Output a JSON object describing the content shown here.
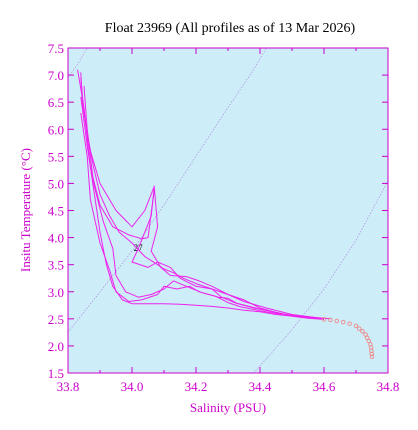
{
  "chart_data": {
    "type": "line",
    "title": "Float 23969  (All profiles as of 13 Mar 2026)",
    "xlabel": "Salinity (PSU)",
    "ylabel": "Insitu Temperature (°C)",
    "xlim": [
      33.8,
      34.8
    ],
    "ylim": [
      1.5,
      7.5
    ],
    "x_ticks": [
      "33.8",
      "34.0",
      "34.2",
      "34.4",
      "34.6",
      "34.8"
    ],
    "y_ticks": [
      "1.5",
      "2.0",
      "2.5",
      "3.0",
      "3.5",
      "4.0",
      "4.5",
      "5.0",
      "5.5",
      "6.0",
      "6.5",
      "7.0",
      "7.5"
    ],
    "grid": false,
    "colors": {
      "plot_background": "#cdeef8",
      "profiles": "#ee22ee",
      "deep_points": "#ee8888",
      "axes": "#cc00cc",
      "density_contours": "#b088e0"
    },
    "density_contours": [
      {
        "label": "",
        "points": [
          [
            33.8,
            6.95
          ],
          [
            33.83,
            7.2
          ],
          [
            33.86,
            7.5
          ]
        ]
      },
      {
        "label": "27",
        "points": [
          [
            33.8,
            2.25
          ],
          [
            33.9,
            3.0
          ],
          [
            34.0,
            3.75
          ],
          [
            34.1,
            4.6
          ],
          [
            34.2,
            5.5
          ],
          [
            34.3,
            6.4
          ],
          [
            34.38,
            7.1
          ],
          [
            34.42,
            7.5
          ]
        ]
      },
      {
        "label": "",
        "points": [
          [
            34.38,
            1.5
          ],
          [
            34.5,
            2.3
          ],
          [
            34.6,
            3.05
          ],
          [
            34.7,
            3.95
          ],
          [
            34.8,
            5.05
          ]
        ]
      }
    ],
    "contour_label_position": [
      34.005,
      3.75
    ],
    "series": [
      {
        "values": [
          [
            33.84,
            7.05
          ],
          [
            33.845,
            6.5
          ],
          [
            33.86,
            5.9
          ],
          [
            33.88,
            5.3
          ],
          [
            33.9,
            4.8
          ],
          [
            33.93,
            4.4
          ],
          [
            33.96,
            4.1
          ],
          [
            34.0,
            3.9
          ],
          [
            34.04,
            3.65
          ],
          [
            34.08,
            3.5
          ],
          [
            34.1,
            3.42
          ],
          [
            34.13,
            3.35
          ],
          [
            34.16,
            3.25
          ],
          [
            34.2,
            3.15
          ],
          [
            34.25,
            3.05
          ],
          [
            34.3,
            2.95
          ],
          [
            34.35,
            2.85
          ],
          [
            34.4,
            2.7
          ],
          [
            34.45,
            2.62
          ],
          [
            34.5,
            2.55
          ],
          [
            34.55,
            2.52
          ],
          [
            34.6,
            2.5
          ]
        ]
      },
      {
        "values": [
          [
            33.84,
            6.95
          ],
          [
            33.85,
            6.3
          ],
          [
            33.87,
            5.6
          ],
          [
            33.9,
            5.0
          ],
          [
            33.95,
            4.5
          ],
          [
            34.0,
            4.2
          ],
          [
            34.04,
            4.5
          ],
          [
            34.07,
            4.95
          ],
          [
            34.06,
            4.4
          ],
          [
            34.02,
            3.8
          ],
          [
            34.0,
            3.55
          ],
          [
            34.05,
            3.45
          ],
          [
            34.08,
            3.55
          ],
          [
            34.12,
            3.45
          ],
          [
            34.15,
            3.25
          ],
          [
            34.2,
            3.1
          ],
          [
            34.25,
            3.05
          ],
          [
            34.28,
            2.9
          ],
          [
            34.32,
            2.8
          ],
          [
            34.4,
            2.68
          ],
          [
            34.5,
            2.56
          ],
          [
            34.62,
            2.5
          ]
        ]
      },
      {
        "values": [
          [
            33.85,
            6.8
          ],
          [
            33.86,
            6.0
          ],
          [
            33.88,
            5.0
          ],
          [
            33.91,
            4.3
          ],
          [
            33.94,
            3.8
          ],
          [
            33.95,
            3.3
          ],
          [
            33.98,
            3.0
          ],
          [
            34.02,
            2.9
          ],
          [
            34.06,
            2.95
          ],
          [
            34.1,
            3.05
          ],
          [
            34.13,
            3.2
          ],
          [
            34.17,
            3.1
          ],
          [
            34.22,
            2.98
          ],
          [
            34.27,
            2.9
          ],
          [
            34.3,
            2.88
          ],
          [
            34.33,
            2.78
          ],
          [
            34.38,
            2.7
          ],
          [
            34.42,
            2.66
          ],
          [
            34.48,
            2.58
          ],
          [
            34.55,
            2.53
          ]
        ]
      },
      {
        "values": [
          [
            33.84,
            6.6
          ],
          [
            33.86,
            5.7
          ],
          [
            33.88,
            4.9
          ],
          [
            33.9,
            4.1
          ],
          [
            33.92,
            3.5
          ],
          [
            33.94,
            3.1
          ],
          [
            33.97,
            2.85
          ],
          [
            34.0,
            2.78
          ],
          [
            34.05,
            2.78
          ],
          [
            34.1,
            2.78
          ],
          [
            34.15,
            2.77
          ],
          [
            34.2,
            2.75
          ],
          [
            34.25,
            2.73
          ],
          [
            34.3,
            2.7
          ],
          [
            34.35,
            2.66
          ],
          [
            34.4,
            2.63
          ],
          [
            34.45,
            2.58
          ],
          [
            34.5,
            2.55
          ],
          [
            34.55,
            2.51
          ],
          [
            34.6,
            2.49
          ]
        ]
      },
      {
        "values": [
          [
            33.84,
            6.3
          ],
          [
            33.86,
            5.5
          ],
          [
            33.87,
            4.7
          ],
          [
            33.9,
            3.9
          ],
          [
            33.93,
            3.4
          ],
          [
            33.95,
            3.0
          ],
          [
            33.99,
            2.82
          ],
          [
            34.03,
            2.85
          ],
          [
            34.08,
            2.95
          ],
          [
            34.1,
            3.1
          ],
          [
            34.14,
            3.05
          ],
          [
            34.18,
            3.1
          ],
          [
            34.21,
            3.0
          ],
          [
            34.26,
            2.92
          ],
          [
            34.3,
            2.8
          ],
          [
            34.34,
            2.72
          ],
          [
            34.4,
            2.65
          ],
          [
            34.47,
            2.58
          ]
        ]
      },
      {
        "values": [
          [
            33.83,
            7.1
          ],
          [
            33.85,
            6.4
          ],
          [
            33.87,
            5.3
          ],
          [
            33.9,
            4.6
          ],
          [
            33.94,
            4.2
          ],
          [
            33.99,
            4.05
          ],
          [
            34.03,
            3.98
          ],
          [
            34.05,
            4.0
          ],
          [
            34.07,
            4.9
          ],
          [
            34.08,
            4.2
          ],
          [
            34.06,
            3.75
          ],
          [
            34.09,
            3.45
          ],
          [
            34.12,
            3.3
          ],
          [
            34.17,
            3.28
          ],
          [
            34.21,
            3.2
          ],
          [
            34.25,
            3.1
          ],
          [
            34.3,
            2.95
          ],
          [
            34.35,
            2.82
          ],
          [
            34.42,
            2.7
          ],
          [
            34.5,
            2.58
          ],
          [
            34.58,
            2.52
          ]
        ]
      }
    ],
    "deep_points": [
      [
        34.6,
        2.49
      ],
      [
        34.62,
        2.48
      ],
      [
        34.64,
        2.46
      ],
      [
        34.66,
        2.44
      ],
      [
        34.68,
        2.41
      ],
      [
        34.7,
        2.37
      ],
      [
        34.71,
        2.32
      ],
      [
        34.72,
        2.27
      ],
      [
        34.73,
        2.21
      ],
      [
        34.735,
        2.15
      ],
      [
        34.74,
        2.09
      ],
      [
        34.745,
        2.03
      ],
      [
        34.747,
        1.97
      ],
      [
        34.748,
        1.91
      ],
      [
        34.749,
        1.85
      ],
      [
        34.75,
        1.8
      ]
    ]
  }
}
